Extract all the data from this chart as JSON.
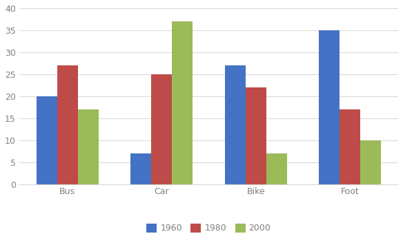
{
  "categories": [
    "Bus",
    "Car",
    "Bike",
    "Foot"
  ],
  "series": {
    "1960": [
      20,
      7,
      27,
      35
    ],
    "1980": [
      27,
      25,
      22,
      17
    ],
    "2000": [
      17,
      37,
      7,
      10
    ]
  },
  "years": [
    "1960",
    "1980",
    "2000"
  ],
  "colors": {
    "1960": "#4472C4",
    "1980": "#BE4B48",
    "2000": "#9BBB59"
  },
  "ylim": [
    0,
    40
  ],
  "yticks": [
    0,
    5,
    10,
    15,
    20,
    25,
    30,
    35,
    40
  ],
  "bar_width": 0.22,
  "background_color": "#FFFFFF",
  "grid_color": "#D9D9D9",
  "tick_color": "#7F7F7F",
  "tick_fontsize": 9,
  "legend_fontsize": 9
}
